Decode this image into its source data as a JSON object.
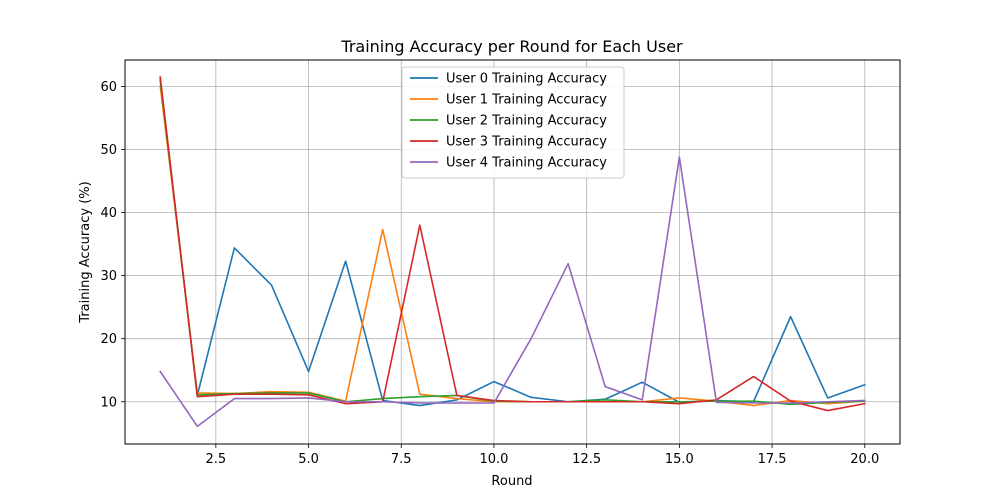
{
  "chart_data": {
    "type": "line",
    "title": "Training Accuracy per Round for Each User",
    "xlabel": "Round",
    "ylabel": "Training Accuracy (%)",
    "xlim": [
      0.05,
      20.95
    ],
    "ylim": [
      3.3,
      64.2
    ],
    "xticks": [
      2.5,
      5.0,
      7.5,
      10.0,
      12.5,
      15.0,
      17.5,
      20.0
    ],
    "xtick_labels": [
      "2.5",
      "5.0",
      "7.5",
      "10.0",
      "12.5",
      "15.0",
      "17.5",
      "20.0"
    ],
    "yticks": [
      10,
      20,
      30,
      40,
      50,
      60
    ],
    "ytick_labels": [
      "10",
      "20",
      "30",
      "40",
      "50",
      "60"
    ],
    "grid": true,
    "legend_position": "top-center",
    "x": [
      1,
      2,
      3,
      4,
      5,
      6,
      7,
      8,
      9,
      10,
      11,
      12,
      13,
      14,
      15,
      16,
      17,
      18,
      19,
      20
    ],
    "series": [
      {
        "name": "User 0 Training Accuracy",
        "color": "#1f77b4",
        "values": [
          61.2,
          11.0,
          34.4,
          28.5,
          14.8,
          32.3,
          10.2,
          9.4,
          10.3,
          13.2,
          10.7,
          10.0,
          10.4,
          13.1,
          9.9,
          10.2,
          10.0,
          23.5,
          10.6,
          12.7
        ]
      },
      {
        "name": "User 1 Training Accuracy",
        "color": "#ff7f0e",
        "values": [
          60.1,
          11.4,
          11.3,
          11.6,
          11.5,
          10.1,
          37.3,
          11.2,
          10.5,
          10.0,
          10.0,
          10.0,
          10.0,
          10.0,
          10.6,
          10.1,
          9.4,
          10.2,
          9.7,
          10.1
        ]
      },
      {
        "name": "User 2 Training Accuracy",
        "color": "#2ca02c",
        "values": [
          61.0,
          11.1,
          11.3,
          11.4,
          11.4,
          10.0,
          10.5,
          10.8,
          11.0,
          10.1,
          10.0,
          10.0,
          10.3,
          10.0,
          10.0,
          10.1,
          10.1,
          9.6,
          9.9,
          10.1
        ]
      },
      {
        "name": "User 3 Training Accuracy",
        "color": "#d62728",
        "values": [
          61.5,
          10.8,
          11.2,
          11.2,
          11.1,
          9.7,
          10.0,
          38.0,
          11.0,
          10.2,
          10.0,
          10.0,
          10.0,
          10.0,
          9.7,
          10.3,
          14.0,
          10.1,
          8.6,
          9.7
        ]
      },
      {
        "name": "User 4 Training Accuracy",
        "color": "#9467bd",
        "values": [
          14.8,
          6.1,
          10.5,
          10.5,
          10.6,
          10.0,
          10.0,
          9.8,
          9.8,
          9.8,
          20.0,
          31.9,
          12.4,
          10.3,
          48.8,
          9.9,
          9.8,
          9.8,
          10.0,
          10.2
        ]
      }
    ]
  }
}
